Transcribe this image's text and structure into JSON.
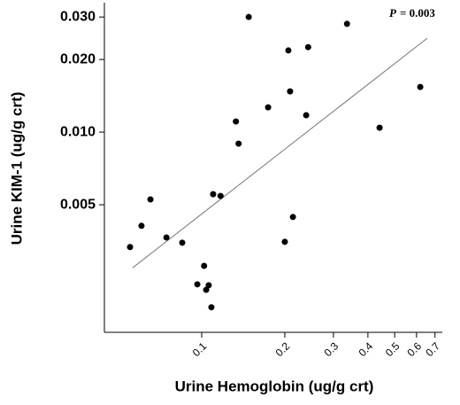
{
  "chart_data": {
    "type": "scatter",
    "x_label": "Urine Hemoglobin (ug/g crt)",
    "y_label": "Urine KIM-1 (ug/g crt)",
    "annotation": {
      "variable": "P",
      "text": "= 0.003"
    },
    "xscale": "log",
    "yscale": "log",
    "xlim": [
      0.0444,
      0.744
    ],
    "ylim": [
      0.00148,
      0.0344
    ],
    "xticks": [
      0.1,
      0.2,
      0.3,
      0.4,
      0.5,
      0.6,
      0.7
    ],
    "yticks": [
      {
        "value": 0.03,
        "label": "0.030"
      },
      {
        "value": 0.02,
        "label": "0.020"
      },
      {
        "value": 0.01,
        "label": "0.010"
      },
      0.005
    ],
    "color": "#000000",
    "line_color": "#777777",
    "x": [
      0.055,
      0.0605,
      0.0652,
      0.0745,
      0.085,
      0.102,
      0.0964,
      0.1038,
      0.106,
      0.1084,
      0.11,
      0.117,
      0.133,
      0.136,
      0.148,
      0.174,
      0.2,
      0.206,
      0.209,
      0.214,
      0.239,
      0.243,
      0.336,
      0.441,
      0.619
    ],
    "y": [
      0.00334,
      0.00409,
      0.00526,
      0.00366,
      0.00348,
      0.00279,
      0.00234,
      0.00222,
      0.00232,
      0.00188,
      0.00553,
      0.00544,
      0.01107,
      0.00896,
      0.03,
      0.01267,
      0.00351,
      0.0218,
      0.01475,
      0.00445,
      0.01175,
      0.0225,
      0.0281,
      0.01043,
      0.01538
    ],
    "fit_line": {
      "x": [
        0.0562,
        0.656
      ],
      "y": [
        0.00274,
        0.0245
      ]
    }
  }
}
